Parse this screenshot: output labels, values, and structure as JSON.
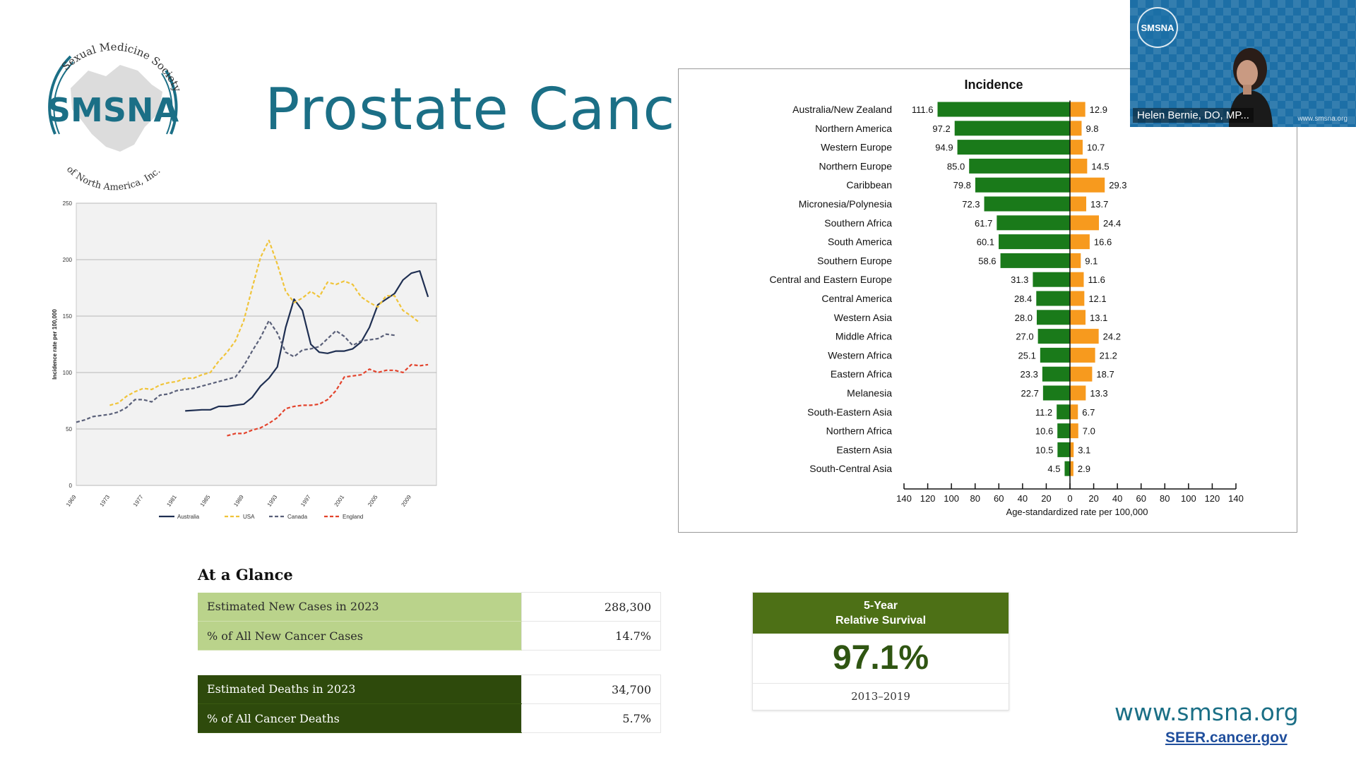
{
  "logo": {
    "arc_top": "Sexual Medicine Society",
    "wordmark": "SMSNA",
    "arc_bottom": "of North America, Inc."
  },
  "slide_title": "Prostate Cancer",
  "video": {
    "badge": "SMSNA",
    "name": "Helen Bernie, DO, MP...",
    "url": "www.smsna.org"
  },
  "glance": {
    "title": "At a Glance",
    "rows_new": [
      {
        "label": "Estimated New Cases in 2023",
        "value": "288,300"
      },
      {
        "label": "% of All New Cancer Cases",
        "value": "14.7%"
      }
    ],
    "rows_death": [
      {
        "label": "Estimated Deaths in 2023",
        "value": "34,700"
      },
      {
        "label": "% of All Cancer Deaths",
        "value": "5.7%"
      }
    ]
  },
  "survival": {
    "line1": "5-Year",
    "line2": "Relative Survival",
    "value": "97.1%",
    "years": "2013–2019"
  },
  "footer": {
    "url": "www.smsna.org",
    "link": "SEER.cancer.gov"
  },
  "colors": {
    "title": "#1b6f86",
    "green_bar": "#1a7a1a",
    "orange_bar": "#f79a1e",
    "australia": "#1f2f52",
    "usa": "#f0c43a",
    "canada": "#5a6079",
    "england": "#e3432c"
  },
  "chart_data": [
    {
      "type": "line",
      "title": "",
      "xlabel": "",
      "ylabel": "Incidence rate per 100,000",
      "ylim": [
        0,
        250
      ],
      "yticks": [
        0,
        50,
        100,
        150,
        200,
        250
      ],
      "xlim": [
        1969,
        2012
      ],
      "xticks": [
        "1969",
        "1973",
        "1977",
        "1981",
        "1985",
        "1989",
        "1993",
        "1997",
        "2001",
        "2005",
        "2009"
      ],
      "grid": true,
      "legend_position": "bottom",
      "series": [
        {
          "name": "Australia",
          "style": "solid",
          "color": "#1f2f52",
          "x": [
            1982,
            1984,
            1985,
            1986,
            1987,
            1988,
            1989,
            1990,
            1991,
            1992,
            1993,
            1994,
            1995,
            1996,
            1997,
            1998,
            1999,
            2000,
            2001,
            2002,
            2003,
            2004,
            2005,
            2006,
            2007,
            2008,
            2009,
            2010,
            2011
          ],
          "y": [
            66,
            67,
            67,
            70,
            70,
            71,
            72,
            78,
            88,
            95,
            105,
            140,
            165,
            155,
            125,
            118,
            117,
            119,
            119,
            121,
            127,
            140,
            160,
            165,
            170,
            182,
            188,
            190,
            167
          ]
        },
        {
          "name": "USA",
          "style": "dashed",
          "color": "#f0c43a",
          "x": [
            1973,
            1974,
            1975,
            1976,
            1977,
            1978,
            1979,
            1980,
            1981,
            1982,
            1983,
            1984,
            1985,
            1986,
            1987,
            1988,
            1989,
            1990,
            1991,
            1992,
            1993,
            1994,
            1995,
            1996,
            1997,
            1998,
            1999,
            2000,
            2001,
            2002,
            2003,
            2004,
            2005,
            2006,
            2007,
            2008,
            2009,
            2010
          ],
          "y": [
            71,
            73,
            79,
            83,
            86,
            85,
            89,
            91,
            92,
            95,
            95,
            98,
            100,
            110,
            118,
            128,
            146,
            175,
            202,
            217,
            196,
            172,
            162,
            166,
            172,
            167,
            180,
            178,
            181,
            178,
            167,
            162,
            158,
            168,
            168,
            155,
            150,
            144
          ]
        },
        {
          "name": "Canada",
          "style": "dashed",
          "color": "#5a6079",
          "x": [
            1969,
            1970,
            1971,
            1972,
            1973,
            1974,
            1975,
            1976,
            1977,
            1978,
            1979,
            1980,
            1981,
            1982,
            1983,
            1984,
            1985,
            1986,
            1987,
            1988,
            1989,
            1990,
            1991,
            1992,
            1993,
            1994,
            1995,
            1996,
            1997,
            1998,
            1999,
            2000,
            2001,
            2002,
            2003,
            2004,
            2005,
            2006,
            2007
          ],
          "y": [
            56,
            58,
            61,
            62,
            63,
            65,
            69,
            76,
            76,
            74,
            80,
            81,
            84,
            85,
            86,
            88,
            90,
            92,
            94,
            96,
            106,
            119,
            131,
            146,
            135,
            118,
            114,
            120,
            121,
            123,
            130,
            137,
            132,
            124,
            128,
            129,
            130,
            134,
            133
          ]
        },
        {
          "name": "England",
          "style": "dashed",
          "color": "#e3432c",
          "x": [
            1987,
            1988,
            1989,
            1990,
            1991,
            1992,
            1993,
            1994,
            1995,
            1996,
            1997,
            1998,
            1999,
            2000,
            2001,
            2002,
            2003,
            2004,
            2005,
            2006,
            2007,
            2008,
            2009,
            2010,
            2011
          ],
          "y": [
            44,
            46,
            46,
            49,
            51,
            55,
            60,
            68,
            70,
            71,
            71,
            72,
            76,
            84,
            96,
            97,
            98,
            103,
            100,
            102,
            102,
            100,
            107,
            106,
            107
          ]
        }
      ]
    },
    {
      "type": "bar",
      "title": "Incidence",
      "xlabel": "Age-standardized rate per 100,000",
      "ylabel": "",
      "xlim": [
        -140,
        140
      ],
      "xticks": [
        "140",
        "120",
        "100",
        "80",
        "60",
        "40",
        "20",
        "0",
        "20",
        "40",
        "60",
        "80",
        "100",
        "120",
        "140"
      ],
      "categories": [
        "Australia/New Zealand",
        "Northern America",
        "Western Europe",
        "Northern Europe",
        "Caribbean",
        "Micronesia/Polynesia",
        "Southern Africa",
        "South America",
        "Southern Europe",
        "Central and Eastern Europe",
        "Central America",
        "Western Asia",
        "Middle Africa",
        "Western Africa",
        "Eastern Africa",
        "Melanesia",
        "South-Eastern Asia",
        "Northern Africa",
        "Eastern Asia",
        "South-Central Asia"
      ],
      "series": [
        {
          "side": "left",
          "color": "#1a7a1a",
          "values": [
            111.6,
            97.2,
            94.9,
            85.0,
            79.8,
            72.3,
            61.7,
            60.1,
            58.6,
            31.3,
            28.4,
            28.0,
            27.0,
            25.1,
            23.3,
            22.7,
            11.2,
            10.6,
            10.5,
            4.5
          ]
        },
        {
          "side": "right",
          "color": "#f79a1e",
          "values": [
            12.9,
            9.8,
            10.7,
            14.5,
            29.3,
            13.7,
            24.4,
            16.6,
            9.1,
            11.6,
            12.1,
            13.1,
            24.2,
            21.2,
            18.7,
            13.3,
            6.7,
            7.0,
            3.1,
            2.9
          ]
        }
      ],
      "value_labels_left": [
        "111.6",
        "97.2",
        "94.9",
        "85.0",
        "79.8",
        "72.3",
        "61.7",
        "60.1",
        "58.6",
        "31.3",
        "28.4",
        "28.0",
        "27.0",
        "25.1",
        "23.3",
        "22.7",
        "11.2",
        "10.6",
        "10.5",
        "4.5"
      ],
      "value_labels_right": [
        "12.9",
        "9.8",
        "10.7",
        "14.5",
        "29.3",
        "13.7",
        "24.4",
        "16.6",
        "9.1",
        "11.6",
        "12.1",
        "13.1",
        "24.2",
        "21.2",
        "18.7",
        "13.3",
        "6.7",
        "7.0",
        "3.1",
        "2.9"
      ]
    }
  ]
}
